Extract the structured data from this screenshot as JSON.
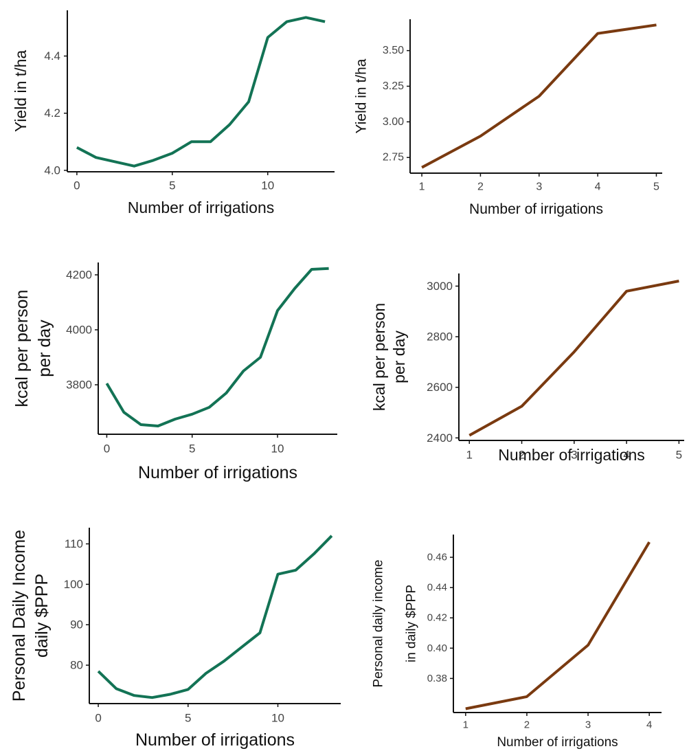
{
  "colors": {
    "series_a": "#137355",
    "series_b": "#7a3a10",
    "axis": "#111111"
  },
  "chart_data": [
    {
      "type": "line",
      "title": "",
      "xlabel": "Number of irrigations",
      "ylabel": [
        "Yield in t/ha"
      ],
      "x": [
        0,
        1,
        2,
        3,
        4,
        5,
        6,
        7,
        8,
        9,
        10,
        11,
        12,
        13
      ],
      "series": [
        {
          "color": "#137355",
          "values": [
            4.08,
            4.045,
            4.03,
            4.015,
            4.035,
            4.06,
            4.1,
            4.1,
            4.16,
            4.24,
            4.465,
            4.52,
            4.535,
            4.52
          ]
        }
      ],
      "xlim": [
        -0.5,
        13.5
      ],
      "ylim": [
        3.995,
        4.56
      ],
      "xticks": [
        0,
        5,
        10
      ],
      "xtick_labels": [
        "0",
        "5",
        "10"
      ],
      "yticks": [
        4.0,
        4.2,
        4.4
      ],
      "ytick_labels": [
        "4.0",
        "4.2",
        "4.4"
      ],
      "grid": false,
      "legend": "none"
    },
    {
      "type": "line",
      "title": "",
      "xlabel": "Number of irrigations",
      "ylabel": [
        "Yield in t/ha"
      ],
      "x": [
        1,
        2,
        3,
        4,
        5
      ],
      "series": [
        {
          "color": "#7a3a10",
          "values": [
            2.68,
            2.9,
            3.18,
            3.62,
            3.68
          ]
        }
      ],
      "xlim": [
        0.8,
        5.1
      ],
      "ylim": [
        2.64,
        3.72
      ],
      "xticks": [
        1,
        2,
        3,
        4,
        5
      ],
      "xtick_labels": [
        "1",
        "2",
        "3",
        "4",
        "5"
      ],
      "yticks": [
        2.75,
        3.0,
        3.25,
        3.5
      ],
      "ytick_labels": [
        "2.75",
        "3.00",
        "3.25",
        "3.50"
      ],
      "grid": false,
      "legend": "none"
    },
    {
      "type": "line",
      "title": "",
      "xlabel": "Number of irrigations",
      "ylabel": [
        "kcal per person",
        "per day"
      ],
      "x": [
        0,
        1,
        2,
        3,
        4,
        5,
        6,
        7,
        8,
        9,
        10,
        11,
        12,
        13
      ],
      "series": [
        {
          "color": "#137355",
          "values": [
            3805,
            3700,
            3655,
            3650,
            3675,
            3693,
            3718,
            3770,
            3850,
            3900,
            4070,
            4150,
            4220,
            4223
          ]
        }
      ],
      "xlim": [
        -0.5,
        13.5
      ],
      "ylim": [
        3620,
        4245
      ],
      "xticks": [
        0,
        5,
        10
      ],
      "xtick_labels": [
        "0",
        "5",
        "10"
      ],
      "yticks": [
        3800,
        4000,
        4200
      ],
      "ytick_labels": [
        "3800",
        "4000",
        "4200"
      ],
      "grid": false,
      "legend": "none"
    },
    {
      "type": "line",
      "title": "",
      "xlabel": "Number of irrigations",
      "ylabel": [
        "kcal per person",
        "per day"
      ],
      "x": [
        1,
        2,
        3,
        4,
        5
      ],
      "series": [
        {
          "color": "#7a3a10",
          "values": [
            2410,
            2525,
            2740,
            2980,
            3020
          ]
        }
      ],
      "xlim": [
        0.8,
        5.1
      ],
      "ylim": [
        2390,
        3050
      ],
      "xticks": [
        1,
        2,
        3,
        4,
        5
      ],
      "xtick_labels": [
        "1",
        "2",
        "3",
        "4",
        "5"
      ],
      "yticks": [
        2400,
        2600,
        2800,
        3000
      ],
      "ytick_labels": [
        "2400",
        "2600",
        "2800",
        "3000"
      ],
      "grid": false,
      "legend": "none"
    },
    {
      "type": "line",
      "title": "",
      "xlabel": "Number of irrigations",
      "ylabel": [
        "Personal Daily Income",
        "daily $PPP"
      ],
      "x": [
        0,
        1,
        2,
        3,
        4,
        5,
        6,
        7,
        8,
        9,
        10,
        11,
        12,
        13
      ],
      "series": [
        {
          "color": "#137355",
          "values": [
            78.5,
            74.2,
            72.5,
            72,
            72.8,
            74,
            78,
            81,
            84.5,
            88,
            102.5,
            103.5,
            107.5,
            112
          ]
        }
      ],
      "xlim": [
        -0.5,
        13.5
      ],
      "ylim": [
        70.5,
        114
      ],
      "xticks": [
        0,
        5,
        10
      ],
      "xtick_labels": [
        "0",
        "5",
        "10"
      ],
      "yticks": [
        80,
        90,
        100,
        110
      ],
      "ytick_labels": [
        "80",
        "90",
        "100",
        "110"
      ],
      "grid": false,
      "legend": "none"
    },
    {
      "type": "line",
      "title": "",
      "xlabel": "Number of irrigations",
      "ylabel": [
        "Personal daily income",
        "in daily $PPP"
      ],
      "x": [
        1,
        2,
        3,
        4
      ],
      "series": [
        {
          "color": "#7a3a10",
          "values": [
            0.36,
            0.368,
            0.402,
            0.47
          ]
        }
      ],
      "xlim": [
        0.8,
        4.2
      ],
      "ylim": [
        0.3575,
        0.475
      ],
      "xticks": [
        1,
        2,
        3,
        4
      ],
      "xtick_labels": [
        "1",
        "2",
        "3",
        "4"
      ],
      "yticks": [
        0.38,
        0.4,
        0.42,
        0.44,
        0.46
      ],
      "ytick_labels": [
        "0.38",
        "0.40",
        "0.42",
        "0.44",
        "0.46"
      ],
      "grid": false,
      "legend": "none"
    }
  ]
}
